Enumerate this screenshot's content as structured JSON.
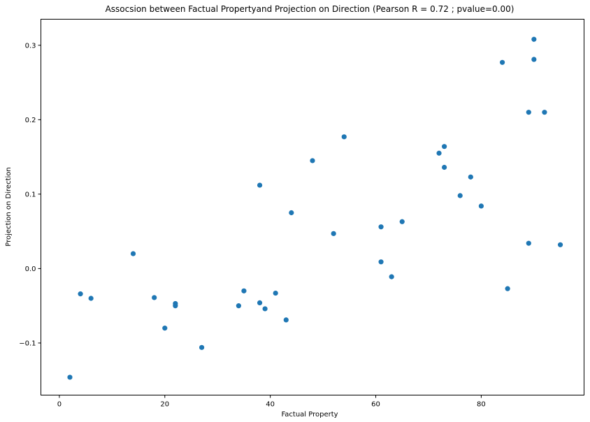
{
  "chart_data": {
    "type": "scatter",
    "title": "Assocsion between Factual Propertyand Projection on Direction (Pearson R = 0.72 ; pvalue=0.00)",
    "xlabel": "Factual Property",
    "ylabel": "Projection on Direction",
    "xlim": [
      -3.5,
      99.5
    ],
    "ylim": [
      -0.17,
      0.335
    ],
    "xticks": [
      0,
      20,
      40,
      60,
      80
    ],
    "xtick_labels": [
      "0",
      "20",
      "40",
      "60",
      "80"
    ],
    "yticks": [
      -0.1,
      0.0,
      0.1,
      0.2,
      0.3
    ],
    "ytick_labels": [
      "−0.1",
      "0.0",
      "0.1",
      "0.2",
      "0.3"
    ],
    "grid": false,
    "marker_color": "#1f77b4",
    "points": [
      {
        "x": 2,
        "y": -0.146
      },
      {
        "x": 4,
        "y": -0.034
      },
      {
        "x": 6,
        "y": -0.04
      },
      {
        "x": 14,
        "y": 0.02
      },
      {
        "x": 18,
        "y": -0.039
      },
      {
        "x": 20,
        "y": -0.08
      },
      {
        "x": 22,
        "y": -0.047
      },
      {
        "x": 22,
        "y": -0.05
      },
      {
        "x": 27,
        "y": -0.106
      },
      {
        "x": 34,
        "y": -0.05
      },
      {
        "x": 35,
        "y": -0.03
      },
      {
        "x": 38,
        "y": 0.112
      },
      {
        "x": 38,
        "y": -0.046
      },
      {
        "x": 39,
        "y": -0.054
      },
      {
        "x": 41,
        "y": -0.033
      },
      {
        "x": 43,
        "y": -0.069
      },
      {
        "x": 44,
        "y": 0.075
      },
      {
        "x": 48,
        "y": 0.145
      },
      {
        "x": 52,
        "y": 0.047
      },
      {
        "x": 54,
        "y": 0.177
      },
      {
        "x": 61,
        "y": 0.056
      },
      {
        "x": 61,
        "y": 0.009
      },
      {
        "x": 63,
        "y": -0.011
      },
      {
        "x": 65,
        "y": 0.063
      },
      {
        "x": 72,
        "y": 0.155
      },
      {
        "x": 73,
        "y": 0.164
      },
      {
        "x": 73,
        "y": 0.136
      },
      {
        "x": 76,
        "y": 0.098
      },
      {
        "x": 78,
        "y": 0.123
      },
      {
        "x": 80,
        "y": 0.084
      },
      {
        "x": 84,
        "y": 0.277
      },
      {
        "x": 85,
        "y": -0.027
      },
      {
        "x": 89,
        "y": 0.21
      },
      {
        "x": 89,
        "y": 0.034
      },
      {
        "x": 90,
        "y": 0.308
      },
      {
        "x": 90,
        "y": 0.281
      },
      {
        "x": 92,
        "y": 0.21
      },
      {
        "x": 95,
        "y": 0.032
      }
    ]
  }
}
